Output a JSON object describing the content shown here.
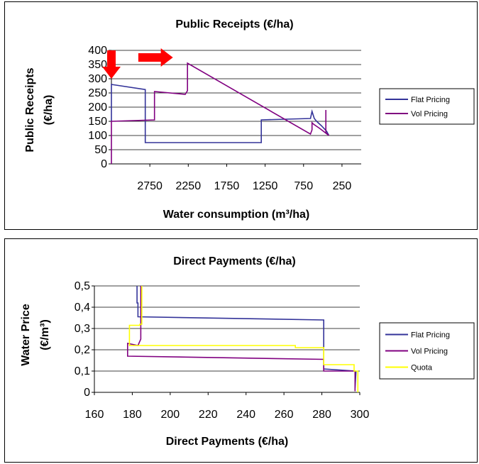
{
  "chart_data": [
    {
      "type": "line",
      "title": "Public Receipts (€/ha)",
      "xlabel": "Water consumption (m³/ha)",
      "ylabel_line1": "Public Receipts",
      "ylabel_line2": "(€/ha)",
      "xlim": [
        3250,
        0
      ],
      "x_reversed": true,
      "ylim": [
        0,
        400
      ],
      "x_ticks": [
        2750,
        2250,
        1750,
        1250,
        750,
        250
      ],
      "x_tick_labels": [
        "2750",
        "2250",
        "1750",
        "1250",
        "750",
        "250"
      ],
      "y_ticks": [
        0,
        50,
        100,
        150,
        200,
        250,
        300,
        350,
        400
      ],
      "y_tick_labels": [
        "0",
        "50",
        "100",
        "150",
        "200",
        "250",
        "300",
        "350",
        "400"
      ],
      "grid": true,
      "legend_position": "right",
      "arrows": [
        {
          "direction": "down",
          "x": 3250,
          "y_from": 400,
          "y_to": 300,
          "color": "#ff0000"
        },
        {
          "direction": "right",
          "x_from": 2900,
          "x_to": 2450,
          "y": 375,
          "color": "#ff0000"
        }
      ],
      "series": [
        {
          "name": "Flat Pricing",
          "color": "#333399",
          "x": [
            3250,
            3250,
            2810,
            2810,
            1300,
            1300,
            660,
            640,
            610,
            580,
            560,
            520,
            450,
            420
          ],
          "y": [
            150,
            280,
            262,
            75,
            75,
            155,
            160,
            185,
            160,
            150,
            145,
            135,
            115,
            100
          ]
        },
        {
          "name": "Vol Pricing",
          "color": "#800080",
          "x": [
            3250,
            3250,
            2690,
            2690,
            2290,
            2260,
            2260,
            660,
            640,
            640,
            620,
            540,
            420,
            460,
            460
          ],
          "y": [
            0,
            150,
            155,
            255,
            245,
            258,
            355,
            105,
            120,
            145,
            140,
            125,
            100,
            110,
            190
          ]
        }
      ]
    },
    {
      "type": "line",
      "title": "Direct Payments (€/ha)",
      "xlabel": "Direct Payments (€/ha)",
      "ylabel_line1": "Water Price",
      "ylabel_line2": "(€/m³)",
      "xlim": [
        160,
        300
      ],
      "ylim": [
        0,
        0.5
      ],
      "x_ticks": [
        160,
        180,
        200,
        220,
        240,
        260,
        280,
        300
      ],
      "x_tick_labels": [
        "160",
        "180",
        "200",
        "220",
        "240",
        "260",
        "280",
        "300"
      ],
      "y_ticks": [
        0,
        0.1,
        0.2,
        0.3,
        0.4,
        0.5
      ],
      "y_tick_labels": [
        "0",
        "0,1",
        "0,2",
        "0,3",
        "0,4",
        "0,5"
      ],
      "grid": true,
      "legend_position": "right",
      "series": [
        {
          "name": "Flat Pricing",
          "color": "#333399",
          "x": [
            182.5,
            182.5,
            183,
            183,
            281,
            281,
            297.5,
            297.5,
            298
          ],
          "y": [
            0.5,
            0.42,
            0.42,
            0.355,
            0.34,
            0.11,
            0.1,
            0.02,
            0.1
          ]
        },
        {
          "name": "Vol Pricing",
          "color": "#800080",
          "x": [
            184.5,
            184.5,
            183,
            177.5,
            177.5,
            281,
            281,
            297.5,
            297.5
          ],
          "y": [
            0.5,
            0.25,
            0.22,
            0.23,
            0.17,
            0.155,
            0.1,
            0.1,
            0.005
          ]
        },
        {
          "name": "Quota",
          "color": "#ffff00",
          "x": [
            185,
            185,
            184,
            184,
            178.5,
            178.5,
            266,
            266,
            281,
            281,
            297,
            297,
            299,
            299
          ],
          "y": [
            0.5,
            0.32,
            0.32,
            0.315,
            0.315,
            0.22,
            0.22,
            0.21,
            0.21,
            0.13,
            0.13,
            0.1,
            0.1,
            0.0
          ]
        }
      ]
    }
  ]
}
